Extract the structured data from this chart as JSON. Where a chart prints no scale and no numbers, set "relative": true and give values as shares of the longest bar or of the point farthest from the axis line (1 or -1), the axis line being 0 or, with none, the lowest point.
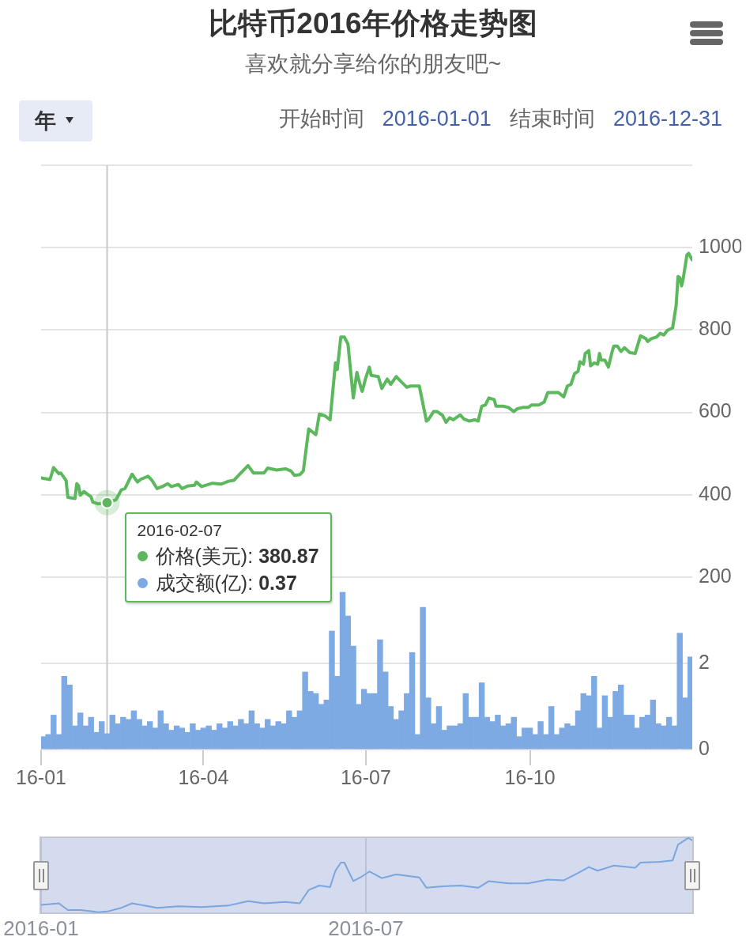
{
  "chart_data": [
    {
      "type": "line",
      "title": "比特币2016年价格走势图",
      "subtitle": "喜欢就分享给你的朋友吧~",
      "annotations": [
        "年",
        "开始时间",
        "2016-01-01",
        "结束时间",
        "2016-12-31",
        {
          "text": "2016-02-07",
          "x": "2016-02-07",
          "y": 380.87
        },
        "380.87"
      ],
      "xlim": [
        "2016-01-01",
        "2016-12-31"
      ],
      "ylim": [
        200,
        1200
      ],
      "yticks": [
        200,
        400,
        600,
        800,
        1000,
        {
          "value": 1200,
          "label": null
        }
      ],
      "tick_labels": "y",
      "grid": "y",
      "ref_lines": [
        {
          "axis": "x",
          "value": "2016-02-07",
          "color": "#c8c8c8"
        }
      ],
      "series": [
        {
          "name": "价格(美元):",
          "color": "#5cb85c",
          "x": [
            "2016-01-01",
            "2016-01-06",
            "2016-01-08",
            "2016-01-11",
            "2016-01-12",
            "2016-01-15",
            "2016-01-16",
            "2016-01-20",
            "2016-01-21",
            "2016-01-22",
            "2016-01-23",
            "2016-01-25",
            "2016-01-29",
            "2016-01-30",
            "2016-02-02",
            "2016-02-07",
            "2016-02-12",
            "2016-02-15",
            "2016-02-17",
            "2016-02-21",
            "2016-02-24",
            "2016-02-26",
            "2016-03-01",
            "2016-03-03",
            "2016-03-06",
            "2016-03-09",
            "2016-03-12",
            "2016-03-14",
            "2016-03-18",
            "2016-03-20",
            "2016-03-23",
            "2016-03-27",
            "2016-03-28",
            "2016-03-31",
            "2016-04-06",
            "2016-04-11",
            "2016-04-15",
            "2016-04-18",
            "2016-04-22",
            "2016-04-26",
            "2016-04-29",
            "2016-05-05",
            "2016-05-07",
            "2016-05-12",
            "2016-05-17",
            "2016-05-20",
            "2016-05-22",
            "2016-05-25",
            "2016-05-27",
            "2016-05-30",
            "2016-06-03",
            "2016-06-05",
            "2016-06-08",
            "2016-06-11",
            "2016-06-14",
            "2016-06-15",
            "2016-06-17",
            "2016-06-19",
            "2016-06-21",
            "2016-06-24",
            "2016-06-26",
            "2016-06-28",
            "2016-06-29",
            "2016-07-01",
            "2016-07-03",
            "2016-07-04",
            "2016-07-08",
            "2016-07-10",
            "2016-07-13",
            "2016-07-15",
            "2016-07-18",
            "2016-07-21",
            "2016-07-24",
            "2016-07-26",
            "2016-07-31",
            "2016-08-04",
            "2016-08-05",
            "2016-08-08",
            "2016-08-10",
            "2016-08-13",
            "2016-08-15",
            "2016-08-17",
            "2016-08-19",
            "2016-08-23",
            "2016-08-25",
            "2016-08-28",
            "2016-08-31",
            "2016-09-02",
            "2016-09-04",
            "2016-09-06",
            "2016-09-08",
            "2016-09-11",
            "2016-09-12",
            "2016-09-16",
            "2016-09-19",
            "2016-09-22",
            "2016-09-24",
            "2016-09-27",
            "2016-09-30",
            "2016-10-02",
            "2016-10-06",
            "2016-10-09",
            "2016-10-11",
            "2016-10-14",
            "2016-10-17",
            "2016-10-20",
            "2016-10-22",
            "2016-10-24",
            "2016-10-26",
            "2016-10-28",
            "2016-10-29",
            "2016-10-31",
            "2016-11-01",
            "2016-11-03",
            "2016-11-04",
            "2016-11-06",
            "2016-11-08",
            "2016-11-09",
            "2016-11-10",
            "2016-11-12",
            "2016-11-14",
            "2016-11-16",
            "2016-11-17",
            "2016-11-19",
            "2016-11-21",
            "2016-11-23",
            "2016-11-26",
            "2016-11-29",
            "2016-12-02",
            "2016-12-05",
            "2016-12-06",
            "2016-12-08",
            "2016-12-11",
            "2016-12-13",
            "2016-12-15",
            "2016-12-17",
            "2016-12-20",
            "2016-12-22",
            "2016-12-23",
            "2016-12-24",
            "2016-12-25",
            "2016-12-26",
            "2016-12-28",
            "2016-12-29",
            "2016-12-31"
          ],
          "values": [
            441,
            437,
            466,
            451,
            453,
            435,
            394,
            391,
            427,
            422,
            399,
            408,
            395,
            382,
            378,
            380.87,
            388,
            412,
            415,
            450,
            431,
            438,
            445,
            436,
            415,
            420,
            427,
            420,
            425,
            415,
            421,
            423,
            431,
            420,
            428,
            426,
            433,
            435,
            453,
            471,
            453,
            453,
            465,
            460,
            463,
            458,
            447,
            449,
            458,
            560,
            546,
            596,
            592,
            582,
            720,
            704,
            783,
            783,
            766,
            635,
            697,
            664,
            651,
            684,
            710,
            690,
            687,
            658,
            681,
            668,
            687,
            674,
            661,
            664,
            664,
            579,
            582,
            602,
            602,
            593,
            576,
            587,
            582,
            594,
            584,
            579,
            582,
            579,
            615,
            618,
            635,
            631,
            615,
            615,
            612,
            602,
            609,
            612,
            612,
            618,
            618,
            625,
            648,
            648,
            648,
            638,
            664,
            668,
            694,
            700,
            723,
            717,
            743,
            750,
            713,
            720,
            717,
            743,
            727,
            727,
            710,
            746,
            761,
            761,
            748,
            757,
            745,
            743,
            786,
            779,
            772,
            779,
            783,
            792,
            788,
            799,
            805,
            861,
            930,
            927,
            907,
            927,
            982,
            986,
            970
          ]
        }
      ]
    },
    {
      "type": "bar",
      "annotations": [
        "0.37"
      ],
      "xlim": [
        "2016-01-01",
        "2016-12-31"
      ],
      "xticks": [
        {
          "value": "2016-01-01",
          "label": "16-01"
        },
        {
          "value": "2016-04-01",
          "label": "16-04"
        },
        {
          "value": "2016-07-01",
          "label": "16-07"
        },
        {
          "value": "2016-10-01",
          "label": "16-10"
        }
      ],
      "ylim": [
        0,
        4
      ],
      "yticks": [
        0,
        2,
        {
          "value": 4,
          "label": null
        }
      ],
      "grid": "y",
      "ref_lines": [
        {
          "axis": "x",
          "value": "2016-02-07",
          "color": "#c8c8c8"
        }
      ],
      "series": [
        {
          "name": "成交额(亿):",
          "color": "#7eaae3",
          "x": [
            "2016-01-02",
            "2016-01-05",
            "2016-01-08",
            "2016-01-11",
            "2016-01-14",
            "2016-01-17",
            "2016-01-20",
            "2016-01-23",
            "2016-01-26",
            "2016-01-29",
            "2016-02-01",
            "2016-02-04",
            "2016-02-07",
            "2016-02-10",
            "2016-02-13",
            "2016-02-16",
            "2016-02-19",
            "2016-02-22",
            "2016-02-25",
            "2016-02-28",
            "2016-03-02",
            "2016-03-05",
            "2016-03-08",
            "2016-03-11",
            "2016-03-14",
            "2016-03-17",
            "2016-03-20",
            "2016-03-23",
            "2016-03-26",
            "2016-03-29",
            "2016-04-01",
            "2016-04-04",
            "2016-04-07",
            "2016-04-10",
            "2016-04-13",
            "2016-04-16",
            "2016-04-19",
            "2016-04-22",
            "2016-04-25",
            "2016-04-28",
            "2016-05-01",
            "2016-05-04",
            "2016-05-07",
            "2016-05-10",
            "2016-05-13",
            "2016-05-16",
            "2016-05-19",
            "2016-05-22",
            "2016-05-25",
            "2016-05-28",
            "2016-05-31",
            "2016-06-03",
            "2016-06-06",
            "2016-06-09",
            "2016-06-12",
            "2016-06-15",
            "2016-06-18",
            "2016-06-21",
            "2016-06-24",
            "2016-06-27",
            "2016-06-30",
            "2016-07-03",
            "2016-07-06",
            "2016-07-09",
            "2016-07-12",
            "2016-07-15",
            "2016-07-18",
            "2016-07-21",
            "2016-07-24",
            "2016-07-27",
            "2016-07-30",
            "2016-08-02",
            "2016-08-05",
            "2016-08-08",
            "2016-08-11",
            "2016-08-14",
            "2016-08-17",
            "2016-08-20",
            "2016-08-23",
            "2016-08-26",
            "2016-08-29",
            "2016-09-01",
            "2016-09-04",
            "2016-09-07",
            "2016-09-10",
            "2016-09-13",
            "2016-09-16",
            "2016-09-19",
            "2016-09-22",
            "2016-09-25",
            "2016-09-28",
            "2016-10-01",
            "2016-10-04",
            "2016-10-07",
            "2016-10-10",
            "2016-10-13",
            "2016-10-16",
            "2016-10-19",
            "2016-10-22",
            "2016-10-25",
            "2016-10-28",
            "2016-10-31",
            "2016-11-03",
            "2016-11-06",
            "2016-11-09",
            "2016-11-12",
            "2016-11-15",
            "2016-11-18",
            "2016-11-21",
            "2016-11-24",
            "2016-11-27",
            "2016-11-30",
            "2016-12-03",
            "2016-12-06",
            "2016-12-09",
            "2016-12-12",
            "2016-12-15",
            "2016-12-18",
            "2016-12-21",
            "2016-12-24",
            "2016-12-27",
            "2016-12-30"
          ],
          "values": [
            0.3,
            0.35,
            0.8,
            0.35,
            1.7,
            1.5,
            0.55,
            0.85,
            0.55,
            0.75,
            0.4,
            0.65,
            0.37,
            0.8,
            0.6,
            0.75,
            0.7,
            0.9,
            0.7,
            0.55,
            0.65,
            0.5,
            0.9,
            0.6,
            0.45,
            0.55,
            0.5,
            0.4,
            0.6,
            0.45,
            0.5,
            0.55,
            0.45,
            0.6,
            0.5,
            0.65,
            0.55,
            0.7,
            0.6,
            0.9,
            0.6,
            0.5,
            0.7,
            0.55,
            0.65,
            0.6,
            0.9,
            0.75,
            0.9,
            1.8,
            1.35,
            1.3,
            1.05,
            1.15,
            2.75,
            1.7,
            3.65,
            3.1,
            2.4,
            1.05,
            1.4,
            1.3,
            1.3,
            2.55,
            1.8,
            1.0,
            0.7,
            0.9,
            1.3,
            2.25,
            0.35,
            3.3,
            1.2,
            0.6,
            1.0,
            0.45,
            0.55,
            0.55,
            0.6,
            1.3,
            0.75,
            0.75,
            1.55,
            0.75,
            0.65,
            0.8,
            0.55,
            0.6,
            0.75,
            0.3,
            0.5,
            0.5,
            0.35,
            0.65,
            0.35,
            1.0,
            0.35,
            0.5,
            0.6,
            0.55,
            0.9,
            1.3,
            1.25,
            1.7,
            0.5,
            1.25,
            0.75,
            1.35,
            1.5,
            0.8,
            0.8,
            0.5,
            0.75,
            0.8,
            1.15,
            0.6,
            0.55,
            0.75,
            0.55,
            2.7,
            1.2,
            2.15
          ]
        }
      ]
    },
    {
      "type": "line",
      "relative": true,
      "color": "#7ba5df",
      "x": [
        "2016-01-01",
        "2016-01-11",
        "2016-01-16",
        "2016-01-23",
        "2016-01-30",
        "2016-02-02",
        "2016-02-07",
        "2016-02-15",
        "2016-02-21",
        "2016-02-26",
        "2016-03-06",
        "2016-03-18",
        "2016-03-31",
        "2016-04-15",
        "2016-04-26",
        "2016-05-05",
        "2016-05-17",
        "2016-05-25",
        "2016-05-30",
        "2016-06-05",
        "2016-06-11",
        "2016-06-14",
        "2016-06-17",
        "2016-06-19",
        "2016-06-24",
        "2016-06-28",
        "2016-07-03",
        "2016-07-10",
        "2016-07-18",
        "2016-07-31",
        "2016-08-04",
        "2016-08-13",
        "2016-08-23",
        "2016-09-02",
        "2016-09-08",
        "2016-09-19",
        "2016-09-30",
        "2016-10-11",
        "2016-10-20",
        "2016-10-28",
        "2016-11-03",
        "2016-11-08",
        "2016-11-17",
        "2016-11-29",
        "2016-12-02",
        "2016-12-13",
        "2016-12-20",
        "2016-12-23",
        "2016-12-28",
        "2016-12-29",
        "2016-12-31"
      ],
      "values": [
        0.1,
        0.12,
        0.03,
        0.03,
        0.01,
        0,
        0.01,
        0.06,
        0.12,
        0.1,
        0.06,
        0.08,
        0.07,
        0.09,
        0.15,
        0.12,
        0.14,
        0.12,
        0.3,
        0.36,
        0.34,
        0.56,
        0.67,
        0.67,
        0.42,
        0.47,
        0.55,
        0.46,
        0.51,
        0.47,
        0.33,
        0.35,
        0.36,
        0.33,
        0.42,
        0.39,
        0.39,
        0.44,
        0.43,
        0.53,
        0.61,
        0.56,
        0.63,
        0.6,
        0.67,
        0.68,
        0.7,
        0.91,
        0.99,
        1,
        0.97
      ],
      "xlim": [
        "2016-01-01",
        "2016-12-31"
      ],
      "xticks": [
        {
          "value": "2016-01-01",
          "label": "2016-01"
        },
        {
          "value": "2016-07-01",
          "label": "2016-07"
        }
      ],
      "grid": "x"
    }
  ]
}
